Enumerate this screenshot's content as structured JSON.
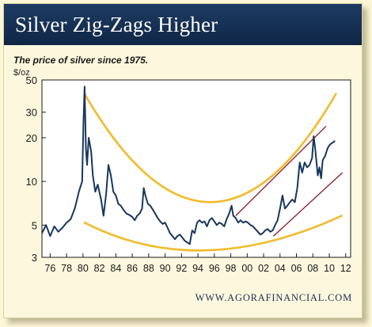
{
  "header": {
    "title": "Silver Zig-Zags Higher"
  },
  "chart_data": {
    "type": "line",
    "title": "Silver Zig-Zags Higher",
    "subtitle": "The price of silver since 1975.",
    "ylabel": "$/oz",
    "xlabel": "",
    "y_scale": "log",
    "ylim": [
      3,
      50
    ],
    "xlim": [
      1975,
      2012.6
    ],
    "y_ticks": [
      3,
      5,
      10,
      20,
      30,
      50
    ],
    "x_ticks": [
      "76",
      "78",
      "80",
      "82",
      "84",
      "86",
      "88",
      "90",
      "92",
      "94",
      "96",
      "98",
      "00",
      "02",
      "04",
      "06",
      "08",
      "10",
      "12"
    ],
    "grid": false,
    "series": [
      {
        "color": "#17375e",
        "x": [
          1975.0,
          1975.5,
          1976.0,
          1976.5,
          1977.0,
          1977.5,
          1978.0,
          1978.5,
          1979.0,
          1979.5,
          1979.9,
          1980.05,
          1980.2,
          1980.35,
          1980.5,
          1980.7,
          1981.0,
          1981.2,
          1981.5,
          1981.8,
          1982.2,
          1982.5,
          1982.8,
          1983.1,
          1983.4,
          1983.7,
          1984.0,
          1984.3,
          1984.6,
          1985.0,
          1985.3,
          1985.6,
          1986.0,
          1986.3,
          1986.6,
          1986.9,
          1987.2,
          1987.4,
          1987.6,
          1987.9,
          1988.2,
          1988.5,
          1988.8,
          1989.1,
          1989.4,
          1989.7,
          1990.0,
          1990.3,
          1990.6,
          1990.9,
          1991.2,
          1991.5,
          1991.8,
          1992.1,
          1992.4,
          1992.7,
          1993.0,
          1993.3,
          1993.6,
          1993.9,
          1994.2,
          1994.5,
          1994.8,
          1995.1,
          1995.4,
          1995.7,
          1996.0,
          1996.3,
          1996.6,
          1996.9,
          1997.2,
          1997.5,
          1997.8,
          1998.1,
          1998.3,
          1998.6,
          1998.9,
          1999.2,
          1999.5,
          1999.8,
          2000.1,
          2000.4,
          2000.7,
          2001.0,
          2001.3,
          2001.6,
          2001.9,
          2002.2,
          2002.5,
          2002.8,
          2003.1,
          2003.4,
          2003.7,
          2004.0,
          2004.3,
          2004.6,
          2004.9,
          2005.2,
          2005.5,
          2005.8,
          2006.1,
          2006.4,
          2006.7,
          2007.0,
          2007.3,
          2007.6,
          2007.9,
          2008.1,
          2008.3,
          2008.6,
          2008.8,
          2009.0,
          2009.2,
          2009.5,
          2009.8,
          2010.1,
          2010.4,
          2010.7
        ],
        "y": [
          4.4,
          5.0,
          4.2,
          4.9,
          4.5,
          4.8,
          5.2,
          5.5,
          6.5,
          8.5,
          10,
          25,
          45,
          17,
          13,
          20,
          16,
          11,
          8.5,
          9.5,
          7.5,
          5.8,
          8,
          13,
          11,
          8.5,
          8.0,
          7.0,
          6.8,
          6.3,
          6.0,
          5.9,
          5.7,
          5.4,
          5.8,
          6.0,
          6.5,
          9.0,
          8.0,
          7.0,
          6.8,
          6.4,
          6.0,
          5.6,
          5.3,
          5.1,
          5.2,
          4.8,
          4.4,
          4.2,
          4.0,
          4.2,
          4.3,
          4.1,
          3.9,
          3.8,
          3.7,
          4.6,
          4.4,
          5.2,
          5.4,
          5.2,
          5.3,
          4.9,
          5.4,
          5.6,
          5.3,
          5.0,
          5.2,
          5.1,
          4.9,
          5.5,
          6.0,
          6.8,
          5.8,
          5.6,
          5.2,
          5.4,
          5.2,
          5.3,
          5.2,
          5.0,
          4.9,
          4.7,
          4.5,
          4.3,
          4.4,
          4.6,
          4.7,
          4.5,
          4.6,
          5.0,
          5.4,
          6.5,
          8.0,
          6.5,
          6.8,
          7.2,
          7.5,
          7.2,
          9.0,
          13.5,
          11.5,
          13.5,
          12.5,
          13.0,
          14.5,
          20.5,
          16.5,
          11.0,
          12.5,
          10.5,
          14.0,
          15.0,
          17.0,
          18.0,
          18.5,
          19.0
        ]
      }
    ],
    "overlays": {
      "upper_curve": {
        "color": "#f2bb2c",
        "x": [
          1980.2,
          1995.5,
          2010.8
        ],
        "y": [
          40,
          7.2,
          40
        ]
      },
      "lower_curve": {
        "color": "#f2bb2c",
        "x": [
          1980.2,
          1995.0,
          2011.5
        ],
        "y": [
          5.2,
          3.35,
          5.8
        ]
      },
      "channel_upper": {
        "color": "#8b1a2a",
        "x": [
          1998.6,
          2009.6
        ],
        "y": [
          5.8,
          24
        ]
      },
      "channel_lower": {
        "color": "#8b1a2a",
        "x": [
          2003.2,
          2011.6
        ],
        "y": [
          4.2,
          11.5
        ]
      }
    },
    "source": "WWW.AGORAFINANCIAL.COM"
  }
}
